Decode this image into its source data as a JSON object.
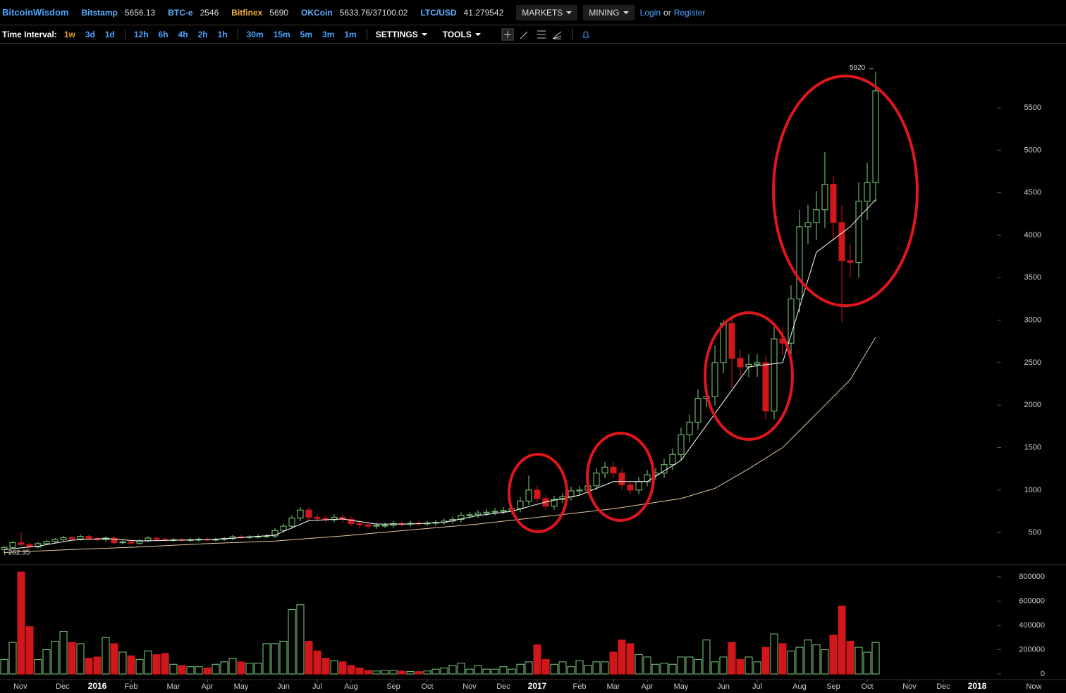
{
  "header": {
    "brand": "BitcoinWisdom",
    "tickers": [
      {
        "name": "Bitstamp",
        "value": 5656.13,
        "color": "#5eb0ff"
      },
      {
        "name": "BTC-e",
        "value": 2546,
        "color": "#5eb0ff"
      },
      {
        "name": "Bitfinex",
        "value": 5690,
        "color": "#f0b040"
      },
      {
        "name": "OKCoin",
        "value": "5633.76/37100.02",
        "color": "#5eb0ff"
      },
      {
        "name": "LTC/USD",
        "value": 41.279542,
        "color": "#5eb0ff"
      }
    ],
    "menus": [
      "MARKETS",
      "MINING"
    ],
    "login": "Login",
    "or": "or",
    "register": "Register"
  },
  "toolbar": {
    "label": "Time Interval:",
    "groups": [
      [
        "1w",
        "3d",
        "1d"
      ],
      [
        "12h",
        "6h",
        "4h",
        "2h",
        "1h"
      ],
      [
        "30m",
        "15m",
        "5m",
        "3m",
        "1m"
      ]
    ],
    "active": "1w",
    "menus": [
      "SETTINGS",
      "TOOLS"
    ]
  },
  "chart_data": {
    "type": "candlestick",
    "open": [
      300,
      325,
      380,
      360,
      330,
      370,
      395,
      415,
      440,
      425,
      455,
      430,
      415,
      435,
      380,
      390,
      375,
      405,
      435,
      420,
      410,
      415,
      410,
      415,
      420,
      415,
      420,
      430,
      450,
      445,
      450,
      455,
      460,
      525,
      575,
      670,
      765,
      680,
      665,
      650,
      680,
      655,
      605,
      590,
      575,
      585,
      585,
      605,
      600,
      610,
      605,
      610,
      620,
      635,
      655,
      705,
      710,
      730,
      740,
      750,
      760,
      780,
      870,
      1000,
      900,
      810,
      890,
      920,
      990,
      1000,
      1050,
      1200,
      1270,
      1200,
      1060,
      1000,
      1100,
      1180,
      1200,
      1300,
      1420,
      1650,
      1800,
      2080,
      2100,
      2500,
      2960,
      2550,
      2450,
      2480,
      2500,
      1930,
      2780,
      2730,
      3250,
      4100,
      4150,
      4300,
      4600,
      4150,
      3700,
      3680,
      4400,
      4620
    ],
    "high": [
      340,
      400,
      510,
      380,
      390,
      415,
      435,
      460,
      460,
      475,
      475,
      450,
      455,
      455,
      410,
      410,
      425,
      455,
      455,
      440,
      435,
      435,
      435,
      440,
      440,
      440,
      450,
      470,
      470,
      470,
      480,
      485,
      550,
      605,
      705,
      800,
      800,
      715,
      700,
      715,
      715,
      690,
      635,
      620,
      615,
      615,
      635,
      635,
      640,
      640,
      640,
      650,
      665,
      690,
      740,
      745,
      765,
      775,
      790,
      800,
      820,
      915,
      1170,
      1050,
      945,
      935,
      965,
      1040,
      1050,
      1100,
      1260,
      1330,
      1330,
      1260,
      1110,
      1155,
      1240,
      1260,
      1365,
      1490,
      1735,
      1890,
      2185,
      2205,
      2700,
      3000,
      3010,
      2650,
      2600,
      2600,
      2580,
      2920,
      2920,
      3410,
      4300,
      4360,
      4520,
      4980,
      4700,
      4350,
      3890,
      4620,
      4850,
      5920
    ],
    "low": [
      262.35,
      310,
      340,
      315,
      315,
      350,
      375,
      395,
      405,
      405,
      410,
      395,
      395,
      360,
      360,
      355,
      355,
      385,
      400,
      390,
      390,
      390,
      390,
      395,
      395,
      395,
      400,
      410,
      425,
      425,
      430,
      435,
      435,
      500,
      545,
      635,
      645,
      630,
      620,
      620,
      620,
      575,
      560,
      545,
      545,
      555,
      555,
      570,
      570,
      575,
      575,
      580,
      590,
      605,
      620,
      670,
      675,
      695,
      705,
      715,
      720,
      740,
      825,
      855,
      770,
      770,
      845,
      875,
      940,
      950,
      1000,
      1140,
      1140,
      1005,
      950,
      950,
      1045,
      1120,
      1140,
      1235,
      1350,
      1565,
      1710,
      1975,
      1995,
      2375,
      2200,
      2300,
      2330,
      2330,
      1830,
      1835,
      2590,
      2595,
      3090,
      3895,
      3945,
      4085,
      3940,
      2980,
      3500,
      3500,
      4180,
      4390
    ],
    "close": [
      325,
      380,
      360,
      330,
      370,
      395,
      415,
      440,
      425,
      455,
      430,
      415,
      435,
      380,
      390,
      375,
      405,
      435,
      420,
      410,
      415,
      410,
      415,
      420,
      415,
      420,
      430,
      450,
      445,
      450,
      455,
      460,
      525,
      575,
      670,
      765,
      680,
      665,
      650,
      680,
      655,
      605,
      590,
      575,
      585,
      585,
      605,
      600,
      610,
      605,
      610,
      620,
      635,
      655,
      705,
      710,
      730,
      740,
      750,
      760,
      780,
      870,
      1000,
      900,
      810,
      890,
      920,
      990,
      1000,
      1050,
      1200,
      1270,
      1200,
      1060,
      1000,
      1100,
      1180,
      1200,
      1300,
      1420,
      1650,
      1800,
      2080,
      2100,
      2500,
      2960,
      2550,
      2450,
      2480,
      2500,
      1930,
      2780,
      2730,
      3250,
      4100,
      4150,
      4300,
      4600,
      4150,
      3700,
      3680,
      4400,
      4620,
      5700
    ],
    "volume": [
      120000,
      260000,
      840000,
      390000,
      120000,
      200000,
      270000,
      350000,
      260000,
      250000,
      130000,
      140000,
      300000,
      250000,
      180000,
      150000,
      120000,
      190000,
      160000,
      170000,
      80000,
      70000,
      60000,
      60000,
      50000,
      80000,
      100000,
      130000,
      100000,
      90000,
      90000,
      250000,
      250000,
      270000,
      530000,
      570000,
      270000,
      190000,
      130000,
      110000,
      100000,
      70000,
      50000,
      30000,
      25000,
      30000,
      30000,
      25000,
      20000,
      20000,
      25000,
      40000,
      50000,
      70000,
      90000,
      40000,
      70000,
      40000,
      40000,
      60000,
      40000,
      80000,
      100000,
      240000,
      120000,
      80000,
      100000,
      60000,
      110000,
      70000,
      100000,
      100000,
      180000,
      280000,
      250000,
      160000,
      140000,
      80000,
      90000,
      80000,
      140000,
      140000,
      120000,
      280000,
      100000,
      140000,
      260000,
      120000,
      140000,
      100000,
      220000,
      330000,
      250000,
      190000,
      220000,
      280000,
      240000,
      200000,
      320000,
      560000,
      270000,
      220000,
      180000,
      260000
    ],
    "colors": {
      "up": "#7fd07f",
      "down": "#d0181c"
    },
    "ma": [
      {
        "color": "#ffffff",
        "x": [
          0,
          4,
          8,
          12,
          16,
          20,
          24,
          28,
          32,
          36,
          40,
          44,
          48,
          52,
          56,
          60,
          64,
          68,
          72,
          76,
          80,
          84,
          88,
          92,
          96,
          100,
          103
        ],
        "values": [
          300,
          340,
          410,
          430,
          400,
          410,
          415,
          440,
          470,
          640,
          660,
          600,
          600,
          620,
          700,
          750,
          860,
          940,
          1100,
          1100,
          1350,
          1900,
          2450,
          2500,
          3800,
          4100,
          4420
        ]
      },
      {
        "color": "#e8c9a0",
        "x": [
          0,
          8,
          16,
          24,
          32,
          40,
          48,
          56,
          64,
          72,
          80,
          84,
          88,
          92,
          96,
          100,
          103
        ],
        "values": [
          265,
          300,
          330,
          370,
          400,
          460,
          530,
          600,
          690,
          780,
          900,
          1020,
          1250,
          1500,
          1900,
          2300,
          2800
        ]
      }
    ],
    "xlim": [
      -0.5,
      125.5
    ],
    "xticks": [
      {
        "value": 1.9,
        "label": "Nov"
      },
      {
        "value": 6.9,
        "label": "Dec"
      },
      {
        "value": 11,
        "label": "2016"
      },
      {
        "value": 15,
        "label": "Feb"
      },
      {
        "value": 20,
        "label": "Mar"
      },
      {
        "value": 24,
        "label": "Apr"
      },
      {
        "value": 28,
        "label": "May"
      },
      {
        "value": 33,
        "label": "Jun"
      },
      {
        "value": 37,
        "label": "Jul"
      },
      {
        "value": 41,
        "label": "Aug"
      },
      {
        "value": 46,
        "label": "Sep"
      },
      {
        "value": 50,
        "label": "Oct"
      },
      {
        "value": 55,
        "label": "Nov"
      },
      {
        "value": 59,
        "label": "Dec"
      },
      {
        "value": 63,
        "label": "2017"
      },
      {
        "value": 68,
        "label": "Feb"
      },
      {
        "value": 72,
        "label": "Mar"
      },
      {
        "value": 76,
        "label": "Apr"
      },
      {
        "value": 80,
        "label": "May"
      },
      {
        "value": 85,
        "label": "Jun"
      },
      {
        "value": 89,
        "label": "Jul"
      },
      {
        "value": 94,
        "label": "Aug"
      },
      {
        "value": 98,
        "label": "Sep"
      },
      {
        "value": 102,
        "label": "Oct"
      },
      {
        "value": 107,
        "label": "Nov"
      },
      {
        "value": 111,
        "label": "Dec"
      },
      {
        "value": 115,
        "label": "2018"
      },
      {
        "value": 121.7,
        "label": "Now"
      }
    ],
    "ylim": [
      120,
      6230
    ],
    "yticks": [
      500,
      1000,
      1500,
      2000,
      2500,
      3000,
      3500,
      4000,
      4500,
      5000,
      5500
    ],
    "volume_ylim": [
      -46000,
      881000
    ],
    "volume_yticks": [
      0,
      200000,
      400000,
      600000,
      800000
    ],
    "annotations": [
      {
        "text": "5920 →",
        "value": 5920,
        "index": 103
      },
      {
        "text": "↓ 262.35",
        "value": 262.35,
        "index": 0
      }
    ]
  }
}
